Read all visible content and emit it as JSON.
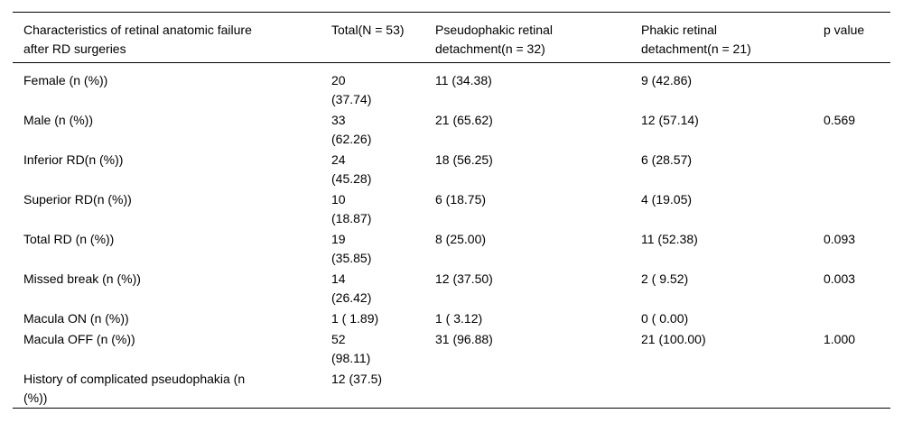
{
  "table": {
    "columns": [
      {
        "label": "Characteristics of retinal anatomic failure\nafter RD surgeries"
      },
      {
        "label": "Total(N = 53)"
      },
      {
        "label": "Pseudophakic retinal\ndetachment(n = 32)"
      },
      {
        "label": "Phakic retinal\ndetachment(n = 21)"
      },
      {
        "label": "p value"
      }
    ],
    "rows": [
      {
        "label": "Female (n (%))",
        "total": "20\n(37.74)",
        "pseudophakic": "11 (34.38)",
        "phakic": "9 (42.86)",
        "p_value": ""
      },
      {
        "label": "Male (n (%))",
        "total": "33\n(62.26)",
        "pseudophakic": "21 (65.62)",
        "phakic": "12 (57.14)",
        "p_value": "0.569"
      },
      {
        "label": "Inferior RD(n (%))",
        "total": "24\n(45.28)",
        "pseudophakic": "18 (56.25)",
        "phakic": "6 (28.57)",
        "p_value": ""
      },
      {
        "label": "Superior RD(n (%))",
        "total": "10\n(18.87)",
        "pseudophakic": "6 (18.75)",
        "phakic": "4 (19.05)",
        "p_value": ""
      },
      {
        "label": "Total RD (n (%))",
        "total": "19\n(35.85)",
        "pseudophakic": "8 (25.00)",
        "phakic": "11 (52.38)",
        "p_value": "0.093"
      },
      {
        "label": "Missed break (n (%))",
        "total": "14\n(26.42)",
        "pseudophakic": "12 (37.50)",
        "phakic": "2 ( 9.52)",
        "p_value": "0.003"
      },
      {
        "label": "Macula ON (n (%))",
        "total": "1 ( 1.89)",
        "pseudophakic": "1 ( 3.12)",
        "phakic": "0 ( 0.00)",
        "p_value": ""
      },
      {
        "label": "Macula OFF (n (%))",
        "total": "52\n(98.11)",
        "pseudophakic": "31 (96.88)",
        "phakic": "21 (100.00)",
        "p_value": "1.000"
      },
      {
        "label": "History of complicated pseudophakia (n\n(%))",
        "total": "12 (37.5)",
        "pseudophakic": "",
        "phakic": "",
        "p_value": ""
      }
    ]
  }
}
